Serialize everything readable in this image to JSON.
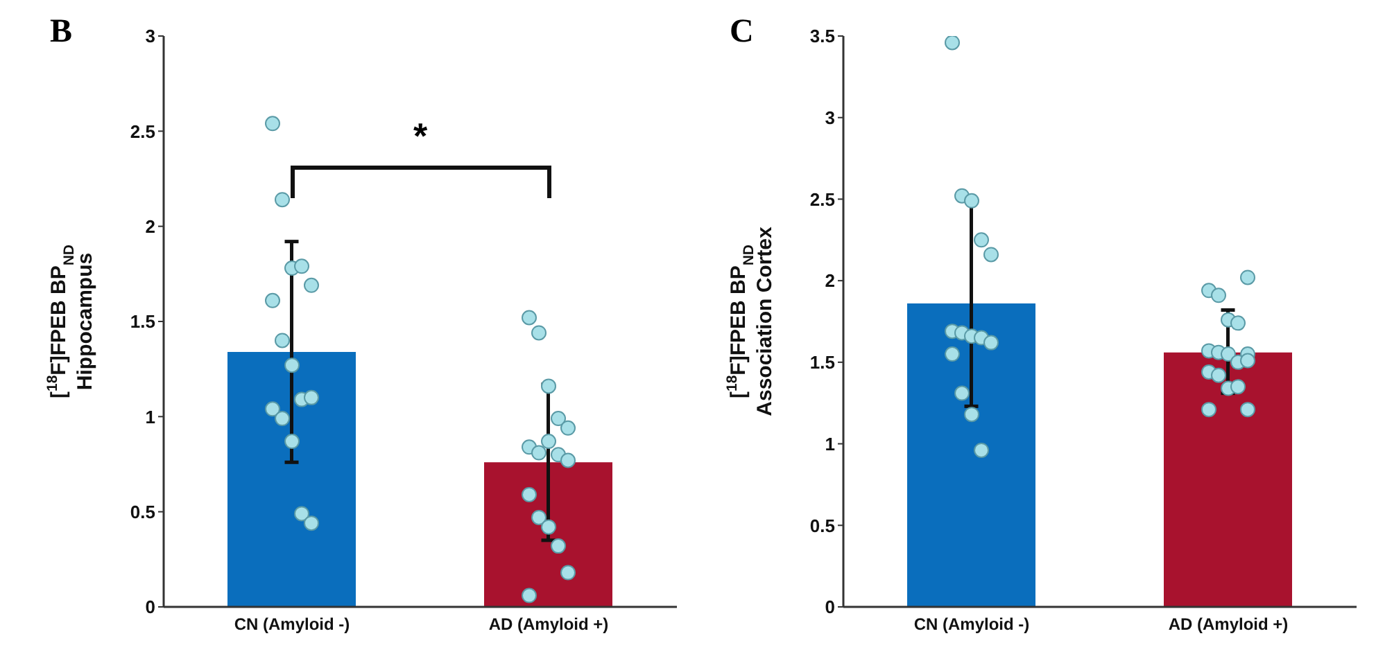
{
  "chart_data": [
    {
      "type": "bar",
      "title": "B",
      "categories": [
        "CN (Amyloid -)",
        "AD (Amyloid +)"
      ],
      "ylabel": "[$^{18}$F]FPEB BP$_{ND}$\nHippocampus",
      "ylim": [
        0,
        3
      ],
      "yticks": [
        0,
        0.5,
        1,
        1.5,
        2,
        2.5,
        3
      ],
      "grid": false,
      "legend": false,
      "annotations": [
        "*"
      ],
      "series": [
        {
          "type": "bar",
          "values": [
            1.34,
            0.76
          ],
          "colors": [
            "#0a6ebd",
            "#a8122e"
          ],
          "errors": [
            [
              0.76,
              1.92
            ],
            [
              0.35,
              1.17
            ]
          ]
        },
        {
          "type": "scatter",
          "color": "#a8e0e8",
          "x": [
            "CN (Amyloid -)",
            "CN (Amyloid -)",
            "CN (Amyloid -)",
            "CN (Amyloid -)",
            "CN (Amyloid -)",
            "CN (Amyloid -)",
            "CN (Amyloid -)",
            "CN (Amyloid -)",
            "CN (Amyloid -)",
            "CN (Amyloid -)",
            "CN (Amyloid -)",
            "CN (Amyloid -)",
            "CN (Amyloid -)",
            "CN (Amyloid -)",
            "CN (Amyloid -)",
            "AD (Amyloid +)",
            "AD (Amyloid +)",
            "AD (Amyloid +)",
            "AD (Amyloid +)",
            "AD (Amyloid +)",
            "AD (Amyloid +)",
            "AD (Amyloid +)",
            "AD (Amyloid +)",
            "AD (Amyloid +)",
            "AD (Amyloid +)",
            "AD (Amyloid +)",
            "AD (Amyloid +)",
            "AD (Amyloid +)",
            "AD (Amyloid +)",
            "AD (Amyloid +)",
            "AD (Amyloid +)"
          ],
          "values": [
            2.54,
            2.14,
            1.78,
            1.79,
            1.69,
            1.61,
            1.4,
            1.27,
            1.09,
            1.1,
            1.04,
            0.99,
            0.87,
            0.49,
            0.44,
            1.52,
            1.44,
            1.16,
            0.99,
            0.94,
            0.84,
            0.81,
            0.87,
            0.8,
            0.77,
            0.59,
            0.47,
            0.42,
            0.32,
            0.18,
            0.06
          ]
        }
      ]
    },
    {
      "type": "bar",
      "title": "C",
      "categories": [
        "CN (Amyloid -)",
        "AD (Amyloid +)"
      ],
      "ylabel": "[$^{18}$F]FPEB BP$_{ND}$\nAssociation Cortex",
      "ylim": [
        0,
        3.5
      ],
      "yticks": [
        0,
        0.5,
        1,
        1.5,
        2,
        2.5,
        3,
        3.5
      ],
      "grid": false,
      "legend": false,
      "series": [
        {
          "type": "bar",
          "values": [
            1.86,
            1.56
          ],
          "colors": [
            "#0a6ebd",
            "#a8122e"
          ],
          "errors": [
            [
              1.23,
              2.49
            ],
            [
              1.31,
              1.82
            ]
          ]
        },
        {
          "type": "scatter",
          "color": "#a8e0e8",
          "x": [
            "CN (Amyloid -)",
            "CN (Amyloid -)",
            "CN (Amyloid -)",
            "CN (Amyloid -)",
            "CN (Amyloid -)",
            "CN (Amyloid -)",
            "CN (Amyloid -)",
            "CN (Amyloid -)",
            "CN (Amyloid -)",
            "CN (Amyloid -)",
            "CN (Amyloid -)",
            "CN (Amyloid -)",
            "CN (Amyloid -)",
            "CN (Amyloid -)",
            "AD (Amyloid +)",
            "AD (Amyloid +)",
            "AD (Amyloid +)",
            "AD (Amyloid +)",
            "AD (Amyloid +)",
            "AD (Amyloid +)",
            "AD (Amyloid +)",
            "AD (Amyloid +)",
            "AD (Amyloid +)",
            "AD (Amyloid +)",
            "AD (Amyloid +)",
            "AD (Amyloid +)",
            "AD (Amyloid +)",
            "AD (Amyloid +)",
            "AD (Amyloid +)",
            "AD (Amyloid +)",
            "AD (Amyloid +)"
          ],
          "values": [
            3.46,
            2.52,
            2.49,
            2.25,
            2.16,
            1.69,
            1.68,
            1.66,
            1.65,
            1.62,
            1.55,
            1.31,
            1.18,
            0.96,
            2.02,
            1.94,
            1.91,
            1.76,
            1.74,
            1.55,
            1.57,
            1.56,
            1.55,
            1.5,
            1.51,
            1.44,
            1.42,
            1.34,
            1.35,
            1.21,
            1.21
          ]
        }
      ]
    }
  ]
}
